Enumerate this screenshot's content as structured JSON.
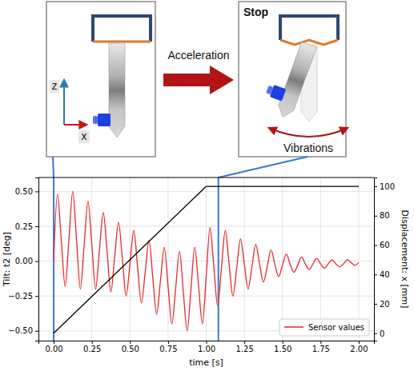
{
  "diagram": {
    "left_panel": {
      "axis_z": "z",
      "axis_x": "x"
    },
    "arrow_label": "Acceleration",
    "right_panel": {
      "title": "Stop",
      "motion_label": "Vibrations"
    }
  },
  "chart_data": {
    "type": "line",
    "x_label": "time [s]",
    "y_label": "Tilt: t2 [deg]",
    "y2_label": "Displacement: x [mm]",
    "xlim": [
      -0.1,
      2.1
    ],
    "xticks": [
      {
        "value": 0,
        "label": "0.00"
      },
      {
        "value": 0.25,
        "label": "0.25"
      },
      {
        "value": 0.5,
        "label": "0.50"
      },
      {
        "value": 0.75,
        "label": "0.75"
      },
      {
        "value": 1,
        "label": "1.00"
      },
      {
        "value": 1.25,
        "label": "1.25"
      },
      {
        "value": 1.5,
        "label": "1.50"
      },
      {
        "value": 1.75,
        "label": "1.75"
      },
      {
        "value": 2,
        "label": "2.00"
      }
    ],
    "ylim": [
      -0.57,
      0.6
    ],
    "yticks": [
      {
        "value": -0.5,
        "label": "−0.50"
      },
      {
        "value": -0.25,
        "label": "−0.25"
      },
      {
        "value": 0,
        "label": "0.00"
      },
      {
        "value": 0.25,
        "label": "0.25"
      },
      {
        "value": 0.5,
        "label": "0.50"
      }
    ],
    "y2lim": [
      -5,
      106
    ],
    "y2ticks": [
      0,
      20,
      40,
      60,
      80,
      100
    ],
    "grid": true,
    "legend": "lower right",
    "event_times": [
      0,
      1.08
    ],
    "series": [
      {
        "name": "Sensor values",
        "color": "#e8272a",
        "axis": "y",
        "x": [
          0,
          0.025,
          0.05,
          0.075,
          0.1,
          0.125,
          0.15,
          0.175,
          0.2,
          0.225,
          0.25,
          0.275,
          0.3,
          0.325,
          0.35,
          0.375,
          0.4,
          0.425,
          0.45,
          0.475,
          0.5,
          0.525,
          0.55,
          0.575,
          0.6,
          0.625,
          0.65,
          0.675,
          0.7,
          0.725,
          0.75,
          0.775,
          0.8,
          0.825,
          0.85,
          0.875,
          0.9,
          0.925,
          0.95,
          0.975,
          1,
          1.025,
          1.05,
          1.075,
          1.1,
          1.125,
          1.15,
          1.175,
          1.2,
          1.225,
          1.25,
          1.275,
          1.3,
          1.325,
          1.35,
          1.375,
          1.4,
          1.425,
          1.45,
          1.475,
          1.5,
          1.525,
          1.55,
          1.575,
          1.6,
          1.625,
          1.65,
          1.675,
          1.7,
          1.725,
          1.75,
          1.775,
          1.8,
          1.825,
          1.85,
          1.875,
          1.9,
          1.925,
          1.95,
          1.975,
          2
        ],
        "values": [
          0,
          0.48,
          0.15,
          -0.18,
          0.16,
          0.5,
          0.15,
          -0.2,
          0.12,
          0.43,
          0.12,
          -0.2,
          0.08,
          0.35,
          0.07,
          -0.22,
          0.03,
          0.28,
          0.02,
          -0.25,
          -0.02,
          0.22,
          -0.04,
          -0.3,
          -0.08,
          0.15,
          -0.12,
          -0.38,
          -0.14,
          0.1,
          -0.18,
          -0.45,
          -0.19,
          0.07,
          -0.22,
          -0.5,
          -0.2,
          0.1,
          -0.18,
          -0.45,
          -0.11,
          0.24,
          -0.04,
          -0.32,
          -0.05,
          0.22,
          -0.02,
          -0.25,
          -0.05,
          0.16,
          -0.02,
          -0.2,
          -0.04,
          0.12,
          -0.02,
          -0.15,
          -0.04,
          0.08,
          -0.02,
          -0.11,
          -0.03,
          0.05,
          -0.02,
          -0.08,
          -0.03,
          0.03,
          -0.02,
          -0.06,
          -0.02,
          0.02,
          -0.02,
          -0.05,
          -0.02,
          0.01,
          -0.02,
          -0.04,
          -0.02,
          0.01,
          -0.01,
          -0.03,
          -0.01
        ]
      },
      {
        "color": "#000000",
        "axis": "y2",
        "x": [
          0,
          1,
          2
        ],
        "values": [
          0,
          100,
          100
        ]
      }
    ]
  }
}
